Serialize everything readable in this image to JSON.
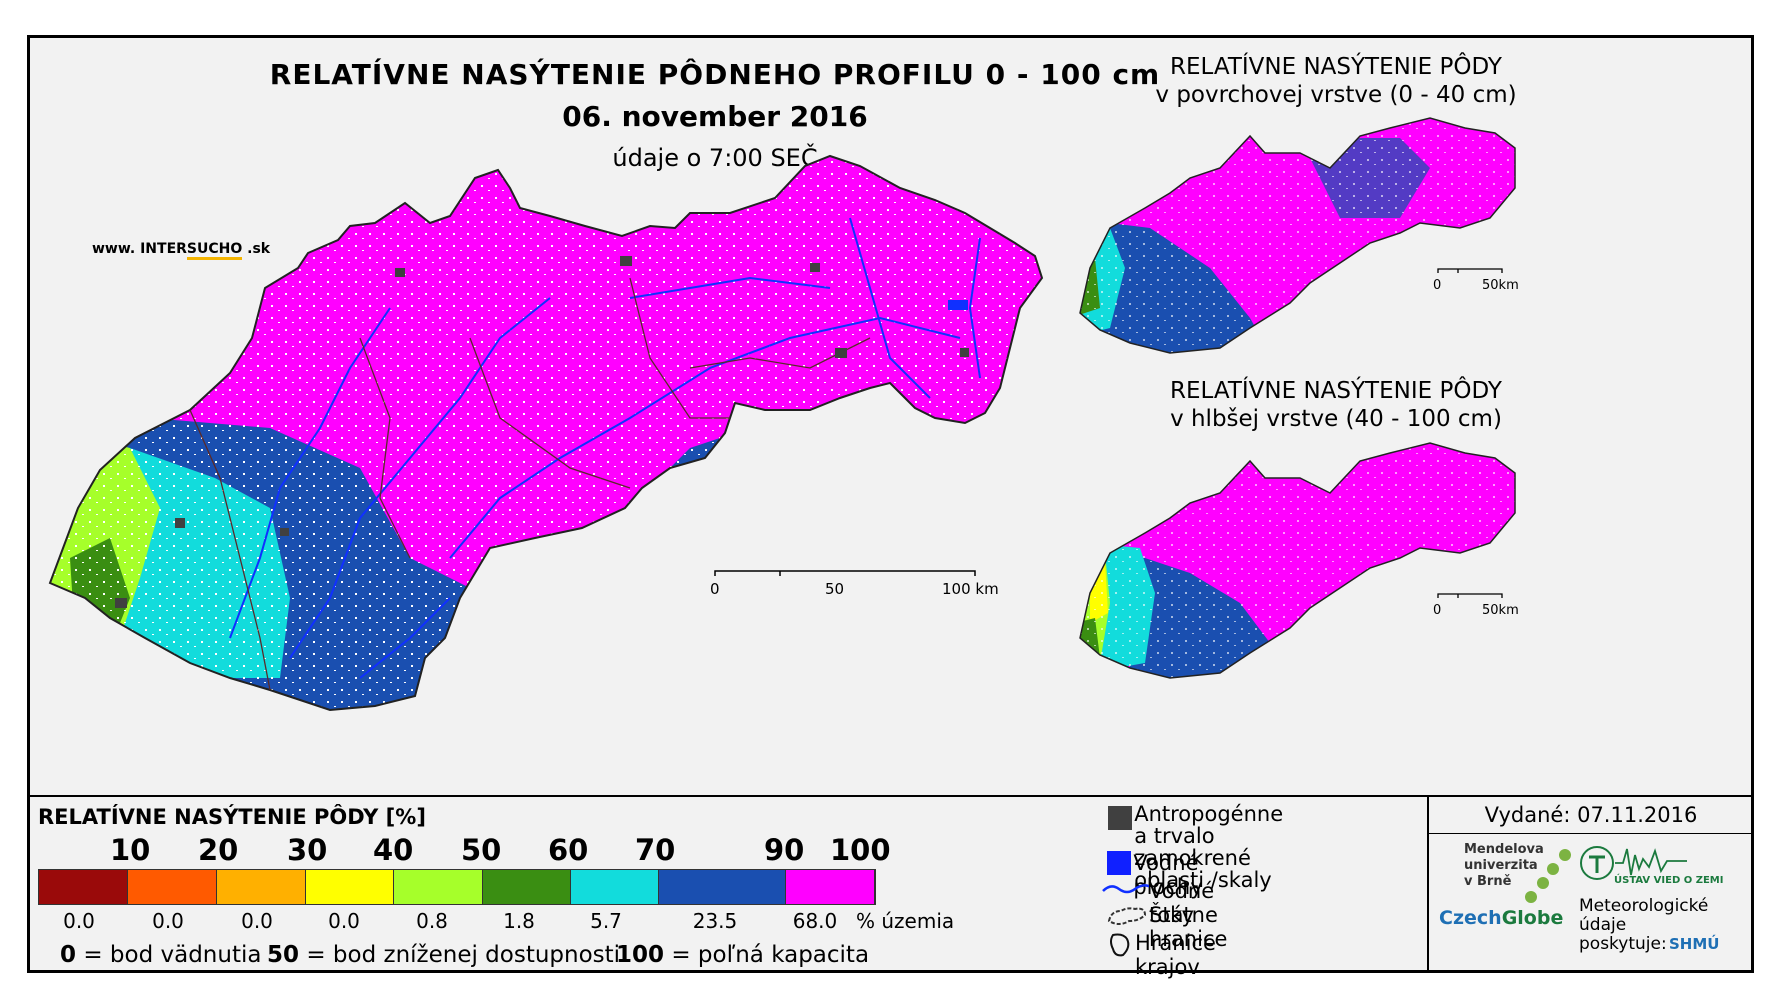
{
  "main_map": {
    "title_line1": "RELATÍVNE NASÝTENIE PÔDNEHO PROFILU 0 - 100 cm",
    "title_date": "06. november 2016",
    "title_time": "údaje o 7:00 SEČ",
    "website_prefix": "www. INTER",
    "website_accent": "SUCHO",
    "website_suffix": " .sk",
    "scale": {
      "l0": "0",
      "l1": "50",
      "l2": "100 km"
    }
  },
  "inset_top": {
    "title_line1": "RELATÍVNE NASÝTENIE PÔDY",
    "title_line2": "v povrchovej vrstve (0 - 40 cm)",
    "scale": {
      "l0": "0",
      "l1": "50km"
    }
  },
  "inset_bottom": {
    "title_line1": "RELATÍVNE NASÝTENIE PÔDY",
    "title_line2": "v hlbšej vrstve (40 - 100 cm)",
    "scale": {
      "l0": "0",
      "l1": "50km"
    }
  },
  "legend": {
    "title": "RELATÍVNE NASÝTENIE PÔDY [%]",
    "ticks": [
      "10",
      "20",
      "30",
      "40",
      "50",
      "60",
      "70",
      "90",
      "100"
    ],
    "classes": [
      {
        "color": "#9a0a0a",
        "share": "0.0"
      },
      {
        "color": "#ff5a00",
        "share": "0.0"
      },
      {
        "color": "#ffb000",
        "share": "0.0"
      },
      {
        "color": "#ffff00",
        "share": "0.0"
      },
      {
        "color": "#a6ff2a",
        "share": "0.8"
      },
      {
        "color": "#3a8e12",
        "share": "1.8"
      },
      {
        "color": "#12dcdc",
        "share": "5.7"
      },
      {
        "color": "#1a4fb0",
        "share": "23.5"
      },
      {
        "color": "#ff00ff",
        "share": "68.0"
      }
    ],
    "share_unit": "% územia",
    "def_0_num": "0",
    "def_0_text": " = bod vädnutia",
    "def_50_num": "50",
    "def_50_text": " = bod zníženej dostupnosti",
    "def_100_num": "100",
    "def_100_text": " = poľná kapacita"
  },
  "symbols": {
    "anthro_line1": "Antropogénne a trvalo",
    "anthro_line2": "zamokrené oblasti /skaly",
    "water_bodies": "Vodné plochy",
    "streams": "Vodné toky",
    "state_border": "Štátne hranice",
    "region_border": "Hranice krajov"
  },
  "credits": {
    "issued": "Vydané: 07.11.2016",
    "mendel_1": "Mendelova",
    "mendel_2": "univerzita",
    "mendel_3": "v Brně",
    "czech_a": "Czech",
    "czech_b": "Globe",
    "uvoz": "ÚSTAV VIED O ZEMI",
    "meteo_1": "Meteorologické",
    "meteo_2": "údaje",
    "meteo_3": "poskytuje:",
    "shmu": "SHMÚ"
  },
  "colors": {
    "magenta": "#ff00ff",
    "dark_blue": "#1a4fb0",
    "cyan": "#12dcdc",
    "dark_green": "#3a8e12",
    "light_green": "#a6ff2a",
    "river": "#1030ff",
    "anthro": "#404040"
  }
}
